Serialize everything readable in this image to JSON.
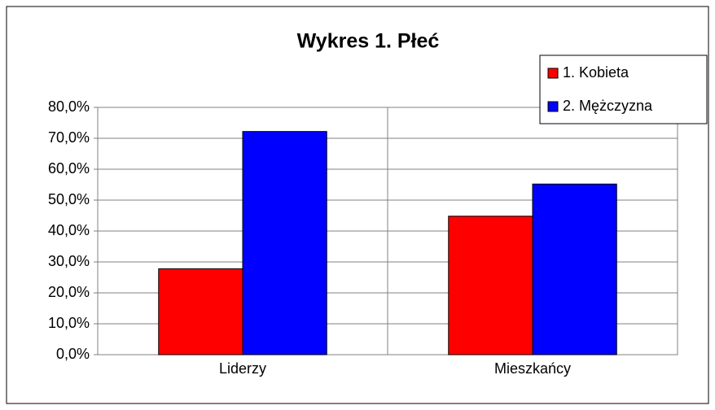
{
  "chart_data": {
    "type": "bar",
    "title": "Wykres 1. Płeć",
    "categories": [
      "Liderzy",
      "Mieszkańcy"
    ],
    "series": [
      {
        "name": "1. Kobieta",
        "color": "#ff0000",
        "values": [
          27.8,
          44.8
        ]
      },
      {
        "name": "2. Mężczyzna",
        "color": "#0000ff",
        "values": [
          72.2,
          55.2
        ]
      }
    ],
    "ylim": [
      0,
      80
    ],
    "yticks": [
      {
        "value": 0,
        "label": "0,0%"
      },
      {
        "value": 10,
        "label": "10,0%"
      },
      {
        "value": 20,
        "label": "20,0%"
      },
      {
        "value": 30,
        "label": "30,0%"
      },
      {
        "value": 40,
        "label": "40,0%"
      },
      {
        "value": 50,
        "label": "50,0%"
      },
      {
        "value": 60,
        "label": "60,0%"
      },
      {
        "value": 70,
        "label": "70,0%"
      },
      {
        "value": 80,
        "label": "80,0%"
      }
    ],
    "grid": true,
    "legend": "top-right"
  }
}
